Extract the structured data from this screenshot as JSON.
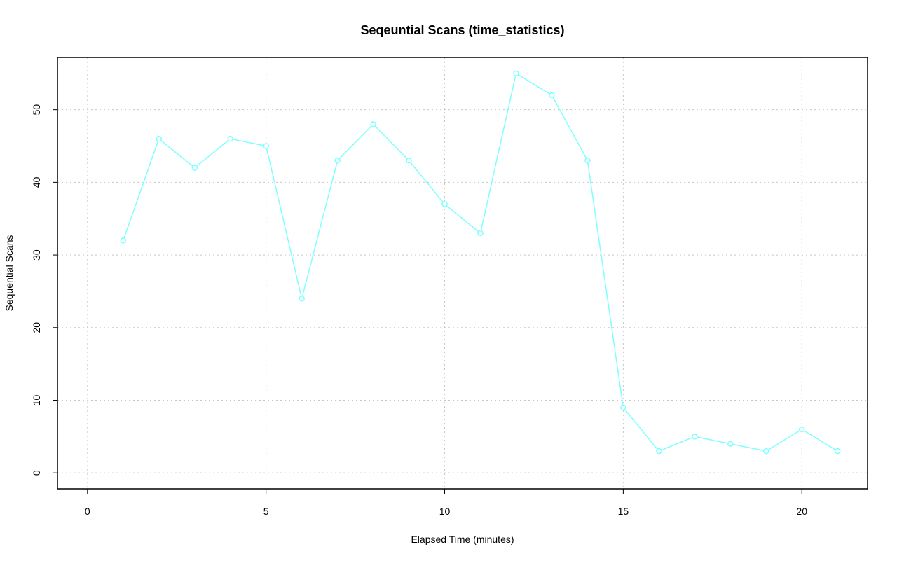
{
  "chart_data": {
    "type": "line",
    "title": "Seqeuntial Scans (time_statistics)",
    "x_label": "Elapsed Time (minutes)",
    "y_label": "Sequential Scans",
    "x": [
      1,
      2,
      3,
      4,
      5,
      6,
      7,
      8,
      9,
      10,
      11,
      12,
      13,
      14,
      15,
      16,
      17,
      18,
      19,
      20,
      21
    ],
    "series": [
      {
        "color": "#7fffff",
        "values": [
          32,
          46,
          42,
          46,
          45,
          24,
          43,
          48,
          43,
          37,
          33,
          55,
          52,
          43,
          9,
          3,
          5,
          4,
          3,
          6,
          3
        ]
      }
    ],
    "xlim": [
      -0.84,
      21.84
    ],
    "xticks": [
      0,
      5,
      10,
      15,
      20
    ],
    "ylim": [
      -2.2,
      57.2
    ],
    "yticks": [
      0,
      10,
      20,
      30,
      40,
      50
    ],
    "grid": true
  }
}
